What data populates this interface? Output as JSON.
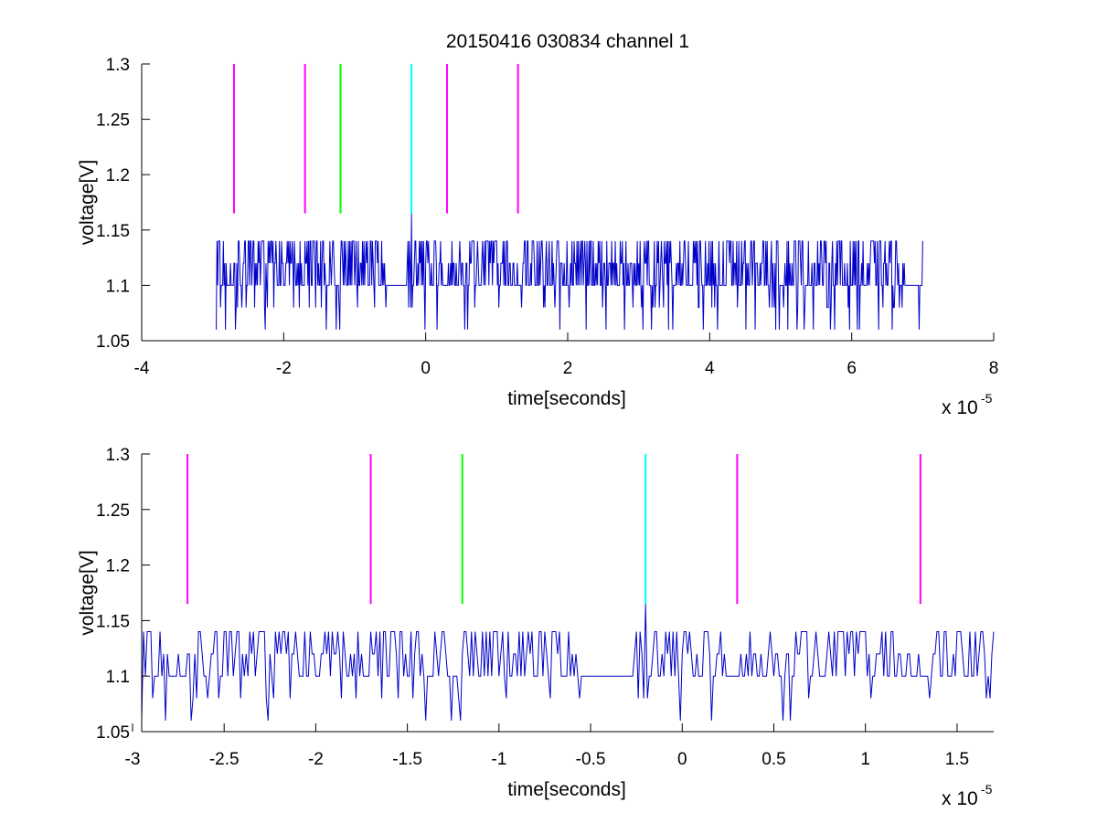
{
  "chart_data": [
    {
      "type": "line",
      "title": "20150416 030834 channel 1",
      "xlabel": "time[seconds]",
      "ylabel": "voltage[V]",
      "xlim": [
        -4e-05,
        8e-05
      ],
      "ylim": [
        1.05,
        1.3
      ],
      "x_ticks": [
        -4,
        -2,
        0,
        2,
        4,
        6,
        8
      ],
      "x_tick_labels": [
        "-4",
        "-2",
        "0",
        "2",
        "4",
        "6",
        "8"
      ],
      "y_ticks": [
        1.05,
        1.1,
        1.15,
        1.2,
        1.25,
        1.3
      ],
      "y_tick_labels": [
        "1.05",
        "1.1",
        "1.15",
        "1.2",
        "1.25",
        "1.3"
      ],
      "x_multiplier": "x 10",
      "x_exponent": "-5",
      "grid": false,
      "signal": {
        "color": "#0000c8",
        "x_range": [
          -2.95e-05,
          7e-05
        ],
        "baseline": 1.1,
        "levels": [
          1.06,
          1.08,
          1.1,
          1.12,
          1.14
        ],
        "peak": {
          "x": -2e-06,
          "y": 1.165
        }
      },
      "markers": [
        {
          "x": -2.7e-05,
          "color": "#ff00ff",
          "y_range": [
            1.165,
            1.3
          ]
        },
        {
          "x": -1.7e-05,
          "color": "#ff00ff",
          "y_range": [
            1.165,
            1.3
          ]
        },
        {
          "x": -1.2e-05,
          "color": "#00ff00",
          "y_range": [
            1.165,
            1.3
          ]
        },
        {
          "x": -2e-06,
          "color": "#00ffff",
          "y_range": [
            1.165,
            1.3
          ]
        },
        {
          "x": 3e-06,
          "color": "#ff00ff",
          "y_range": [
            1.165,
            1.3
          ]
        },
        {
          "x": 1.3e-05,
          "color": "#ff00ff",
          "y_range": [
            1.165,
            1.3
          ]
        }
      ]
    },
    {
      "type": "line",
      "title": "",
      "xlabel": "time[seconds]",
      "ylabel": "voltage[V]",
      "xlim": [
        -2.95e-05,
        1.7e-05
      ],
      "ylim": [
        1.05,
        1.3
      ],
      "x_ticks": [
        -3,
        -2.5,
        -2,
        -1.5,
        -1,
        -0.5,
        0,
        0.5,
        1,
        1.5
      ],
      "x_tick_labels": [
        "-3",
        "-2.5",
        "-2",
        "-1.5",
        "-1",
        "-0.5",
        "0",
        "0.5",
        "1",
        "1.5"
      ],
      "y_ticks": [
        1.05,
        1.1,
        1.15,
        1.2,
        1.25,
        1.3
      ],
      "y_tick_labels": [
        "1.05",
        "1.1",
        "1.15",
        "1.2",
        "1.25",
        "1.3"
      ],
      "x_multiplier": "x 10",
      "x_exponent": "-5",
      "grid": false,
      "signal": {
        "color": "#0000c8",
        "x_range": [
          -2.95e-05,
          1.7e-05
        ],
        "baseline": 1.1,
        "levels": [
          1.06,
          1.08,
          1.1,
          1.12,
          1.14
        ],
        "peak": {
          "x": -2e-06,
          "y": 1.165
        }
      },
      "markers": [
        {
          "x": -2.7e-05,
          "color": "#ff00ff",
          "y_range": [
            1.165,
            1.3
          ]
        },
        {
          "x": -1.7e-05,
          "color": "#ff00ff",
          "y_range": [
            1.165,
            1.3
          ]
        },
        {
          "x": -1.2e-05,
          "color": "#00ff00",
          "y_range": [
            1.165,
            1.3
          ]
        },
        {
          "x": -2e-06,
          "color": "#00ffff",
          "y_range": [
            1.165,
            1.3
          ]
        },
        {
          "x": 3e-06,
          "color": "#ff00ff",
          "y_range": [
            1.165,
            1.3
          ]
        },
        {
          "x": 1.3e-05,
          "color": "#ff00ff",
          "y_range": [
            1.165,
            1.3
          ]
        }
      ]
    }
  ]
}
